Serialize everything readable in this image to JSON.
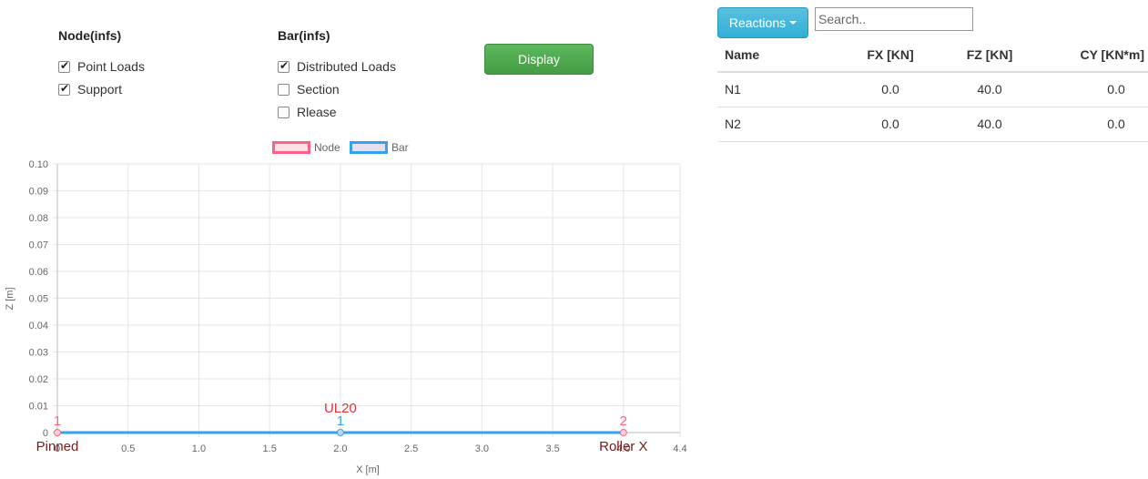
{
  "node_group": {
    "title": "Node(infs)",
    "options": [
      {
        "label": "Point Loads",
        "checked": true
      },
      {
        "label": "Support",
        "checked": true
      }
    ]
  },
  "bar_group": {
    "title": "Bar(infs)",
    "options": [
      {
        "label": "Distributed Loads",
        "checked": true
      },
      {
        "label": "Section",
        "checked": false
      },
      {
        "label": "Rlease",
        "checked": false
      }
    ]
  },
  "display_button": "Display",
  "reactions": {
    "button_label": "Reactions",
    "search_placeholder": "Search..",
    "columns": [
      "Name",
      "FX [KN]",
      "FZ [KN]",
      "CY [KN*m]"
    ],
    "rows": [
      [
        "N1",
        "0.0",
        "40.0",
        "0.0"
      ],
      [
        "N2",
        "0.0",
        "40.0",
        "0.0"
      ]
    ]
  },
  "chart_data": {
    "type": "scatter",
    "legend": [
      {
        "name": "Node",
        "color": "#ff6384",
        "fill": "#ffe0e6"
      },
      {
        "name": "Bar",
        "color": "#36a2eb",
        "fill": "#e6e0f0"
      }
    ],
    "legend_position": "top",
    "xlabel": "X [m]",
    "ylabel": "Z [m]",
    "xlim": [
      0,
      4.4
    ],
    "ylim": [
      0,
      0.1
    ],
    "x_ticks": [
      "0",
      "0.5",
      "1.0",
      "1.5",
      "2.0",
      "2.5",
      "3.0",
      "3.5",
      "4.0",
      "4.4"
    ],
    "y_ticks": [
      "0",
      "0.01",
      "0.02",
      "0.03",
      "0.04",
      "0.05",
      "0.06",
      "0.07",
      "0.08",
      "0.09",
      "0.10"
    ],
    "grid": true,
    "nodes": [
      {
        "id": "1",
        "x": 0,
        "z": 0,
        "support": "Pinned"
      },
      {
        "id": "2",
        "x": 4.0,
        "z": 0,
        "support": "Roller X"
      }
    ],
    "bars": [
      {
        "id": "1",
        "x_start": 0,
        "x_end": 4.0,
        "z": 0,
        "mid_x": 2.0,
        "load": "UL20"
      }
    ]
  }
}
